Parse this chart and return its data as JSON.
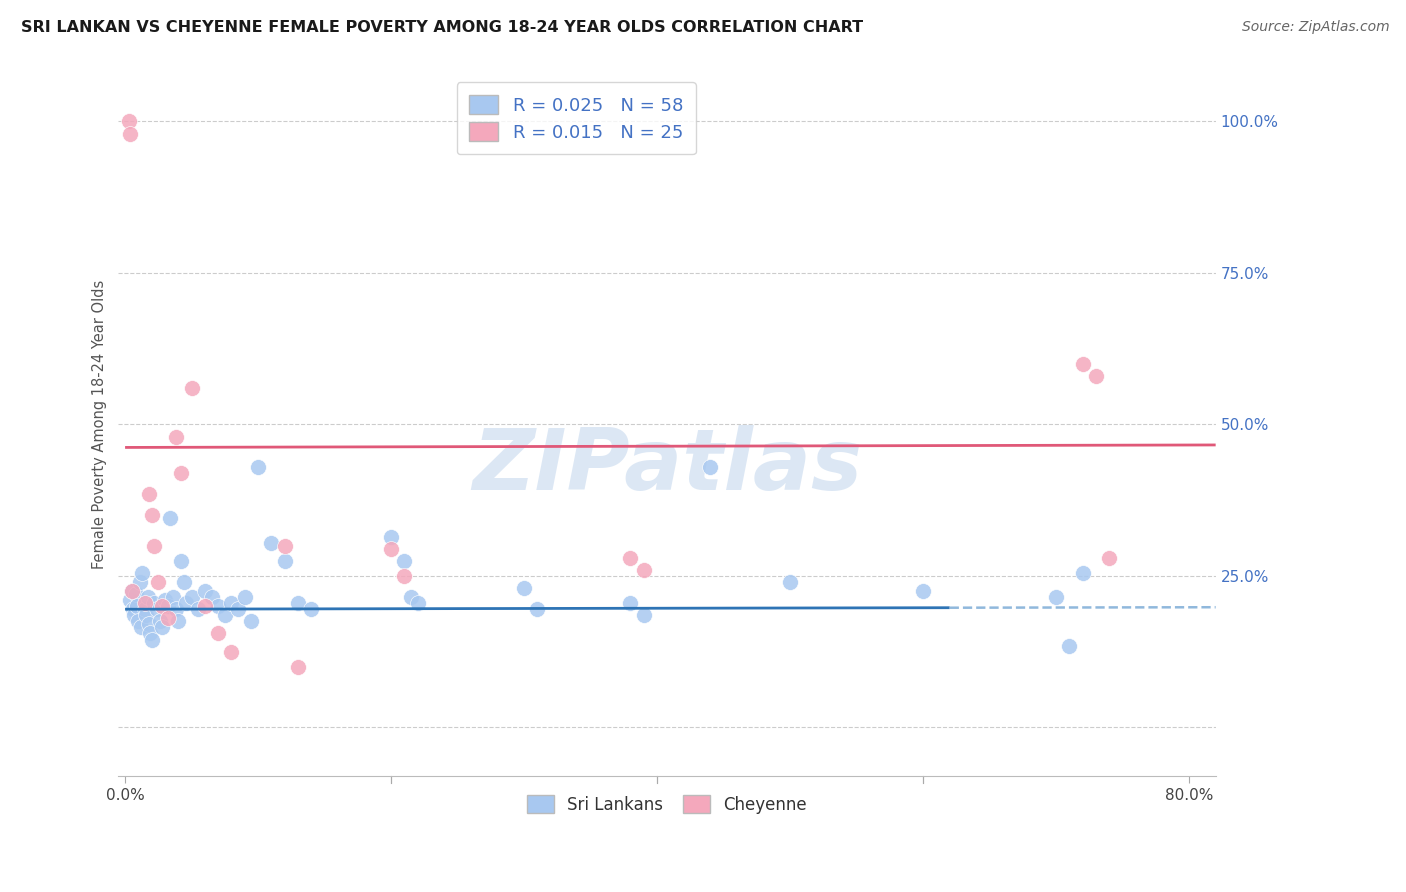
{
  "title": "SRI LANKAN VS CHEYENNE FEMALE POVERTY AMONG 18-24 YEAR OLDS CORRELATION CHART",
  "source": "Source: ZipAtlas.com",
  "ylabel": "Female Poverty Among 18-24 Year Olds",
  "xlim": [
    -0.005,
    0.82
  ],
  "ylim": [
    -0.08,
    1.08
  ],
  "sri_lankan_R": 0.025,
  "sri_lankan_N": 58,
  "cheyenne_R": 0.015,
  "cheyenne_N": 25,
  "sri_lankan_color": "#A8C8F0",
  "cheyenne_color": "#F4A8BC",
  "sri_lankan_line_color": "#2E74B5",
  "cheyenne_line_color": "#E05878",
  "sri_lankan_dash_color": "#90B8DC",
  "legend_label_blue": "Sri Lankans",
  "legend_label_pink": "Cheyenne",
  "watermark": "ZIPatlas",
  "ytick_color": "#4472C4",
  "legend_R_N_color": "#4472C4",
  "sri_lankan_trend_intercept": 0.195,
  "sri_lankan_trend_slope": 0.004,
  "cheyenne_trend_intercept": 0.462,
  "cheyenne_trend_slope": 0.005,
  "sri_lankan_x": [
    0.004,
    0.005,
    0.006,
    0.007,
    0.008,
    0.009,
    0.01,
    0.011,
    0.012,
    0.013,
    0.015,
    0.016,
    0.017,
    0.018,
    0.019,
    0.02,
    0.022,
    0.024,
    0.026,
    0.028,
    0.03,
    0.032,
    0.034,
    0.036,
    0.038,
    0.04,
    0.042,
    0.044,
    0.046,
    0.05,
    0.055,
    0.06,
    0.065,
    0.07,
    0.075,
    0.08,
    0.085,
    0.09,
    0.095,
    0.1,
    0.11,
    0.12,
    0.13,
    0.14,
    0.2,
    0.21,
    0.215,
    0.22,
    0.3,
    0.31,
    0.38,
    0.39,
    0.44,
    0.5,
    0.6,
    0.7,
    0.71,
    0.72
  ],
  "sri_lankan_y": [
    0.21,
    0.225,
    0.195,
    0.185,
    0.22,
    0.2,
    0.175,
    0.24,
    0.165,
    0.255,
    0.195,
    0.185,
    0.215,
    0.17,
    0.155,
    0.145,
    0.205,
    0.195,
    0.175,
    0.165,
    0.21,
    0.2,
    0.345,
    0.215,
    0.195,
    0.175,
    0.275,
    0.24,
    0.205,
    0.215,
    0.195,
    0.225,
    0.215,
    0.2,
    0.185,
    0.205,
    0.195,
    0.215,
    0.175,
    0.43,
    0.305,
    0.275,
    0.205,
    0.195,
    0.315,
    0.275,
    0.215,
    0.205,
    0.23,
    0.195,
    0.205,
    0.185,
    0.43,
    0.24,
    0.225,
    0.215,
    0.135,
    0.255
  ],
  "cheyenne_x": [
    0.003,
    0.004,
    0.005,
    0.015,
    0.018,
    0.02,
    0.022,
    0.025,
    0.028,
    0.032,
    0.038,
    0.042,
    0.05,
    0.06,
    0.07,
    0.08,
    0.12,
    0.13,
    0.2,
    0.21,
    0.38,
    0.39,
    0.72,
    0.73,
    0.74
  ],
  "cheyenne_y": [
    1.0,
    0.98,
    0.225,
    0.205,
    0.385,
    0.35,
    0.3,
    0.24,
    0.2,
    0.18,
    0.48,
    0.42,
    0.56,
    0.2,
    0.155,
    0.125,
    0.3,
    0.1,
    0.295,
    0.25,
    0.28,
    0.26,
    0.6,
    0.58,
    0.28
  ]
}
